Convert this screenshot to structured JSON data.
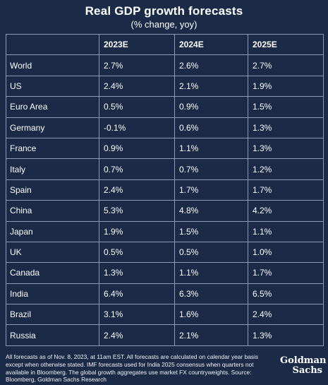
{
  "chart_data": {
    "type": "table",
    "title": "Real GDP growth forecasts",
    "subtitle": "(% change, yoy)",
    "columns": [
      "",
      "2023E",
      "2024E",
      "2025E"
    ],
    "rows": [
      {
        "country": "World",
        "values": [
          "2.7%",
          "2.6%",
          "2.7%"
        ]
      },
      {
        "country": "US",
        "values": [
          "2.4%",
          "2.1%",
          "1.9%"
        ]
      },
      {
        "country": "Euro Area",
        "values": [
          "0.5%",
          "0.9%",
          "1.5%"
        ]
      },
      {
        "country": "Germany",
        "values": [
          "-0.1%",
          "0.6%",
          "1.3%"
        ]
      },
      {
        "country": "France",
        "values": [
          "0.9%",
          "1.1%",
          "1.3%"
        ]
      },
      {
        "country": "Italy",
        "values": [
          "0.7%",
          "0.7%",
          "1.2%"
        ]
      },
      {
        "country": "Spain",
        "values": [
          "2.4%",
          "1.7%",
          "1.7%"
        ]
      },
      {
        "country": "China",
        "values": [
          "5.3%",
          "4.8%",
          "4.2%"
        ]
      },
      {
        "country": "Japan",
        "values": [
          "1.9%",
          "1.5%",
          "1.1%"
        ]
      },
      {
        "country": "UK",
        "values": [
          "0.5%",
          "0.5%",
          "1.0%"
        ]
      },
      {
        "country": "Canada",
        "values": [
          "1.3%",
          "1.1%",
          "1.7%"
        ]
      },
      {
        "country": "India",
        "values": [
          "6.4%",
          "6.3%",
          "6.5%"
        ]
      },
      {
        "country": "Brazil",
        "values": [
          "3.1%",
          "1.6%",
          "2.4%"
        ]
      },
      {
        "country": "Russia",
        "values": [
          "2.4%",
          "2.1%",
          "1.3%"
        ]
      }
    ]
  },
  "footnote": "All forecasts as of Nov. 8, 2023, at 11am EST. All forecasts are calculated on calendar year basis except when otherwise stated. IMF forecasts used for India 2025 consensus when quarters not available in Bloomberg. The global growth aggregates use market FX countryweights. Source: Bloomberg, Goldman Sachs Research",
  "logo": {
    "line1": "Goldman",
    "line2": "Sachs"
  },
  "colors": {
    "background": "#1b2a46",
    "gridline": "#8e9ab0",
    "text": "#ffffff"
  }
}
